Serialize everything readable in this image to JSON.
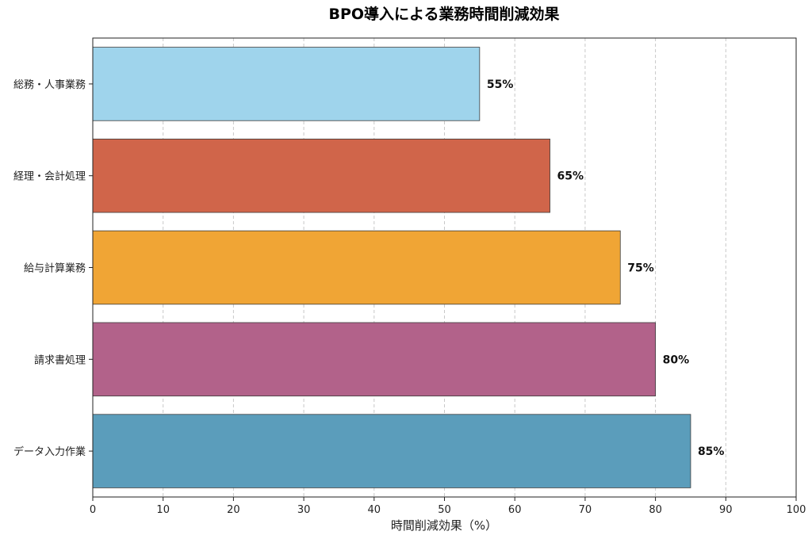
{
  "chart_data": {
    "type": "bar",
    "orientation": "horizontal",
    "title": "BPO導入による業務時間削減効果",
    "xlabel": "時間削減効果（%）",
    "ylabel": "",
    "xlim": [
      0,
      100
    ],
    "xticks": [
      0,
      10,
      20,
      30,
      40,
      50,
      60,
      70,
      80,
      90,
      100
    ],
    "grid": "x-dashed",
    "categories": [
      "総務・人事業務",
      "経理・会計処理",
      "給与計算業務",
      "請求書処理",
      "データ入力作業"
    ],
    "values": [
      55,
      65,
      75,
      80,
      85
    ],
    "data_labels": [
      "55%",
      "65%",
      "75%",
      "80%",
      "85%"
    ],
    "colors": [
      "#9fd4ec",
      "#d0654a",
      "#f0a535",
      "#b2628a",
      "#5b9dbb"
    ]
  }
}
